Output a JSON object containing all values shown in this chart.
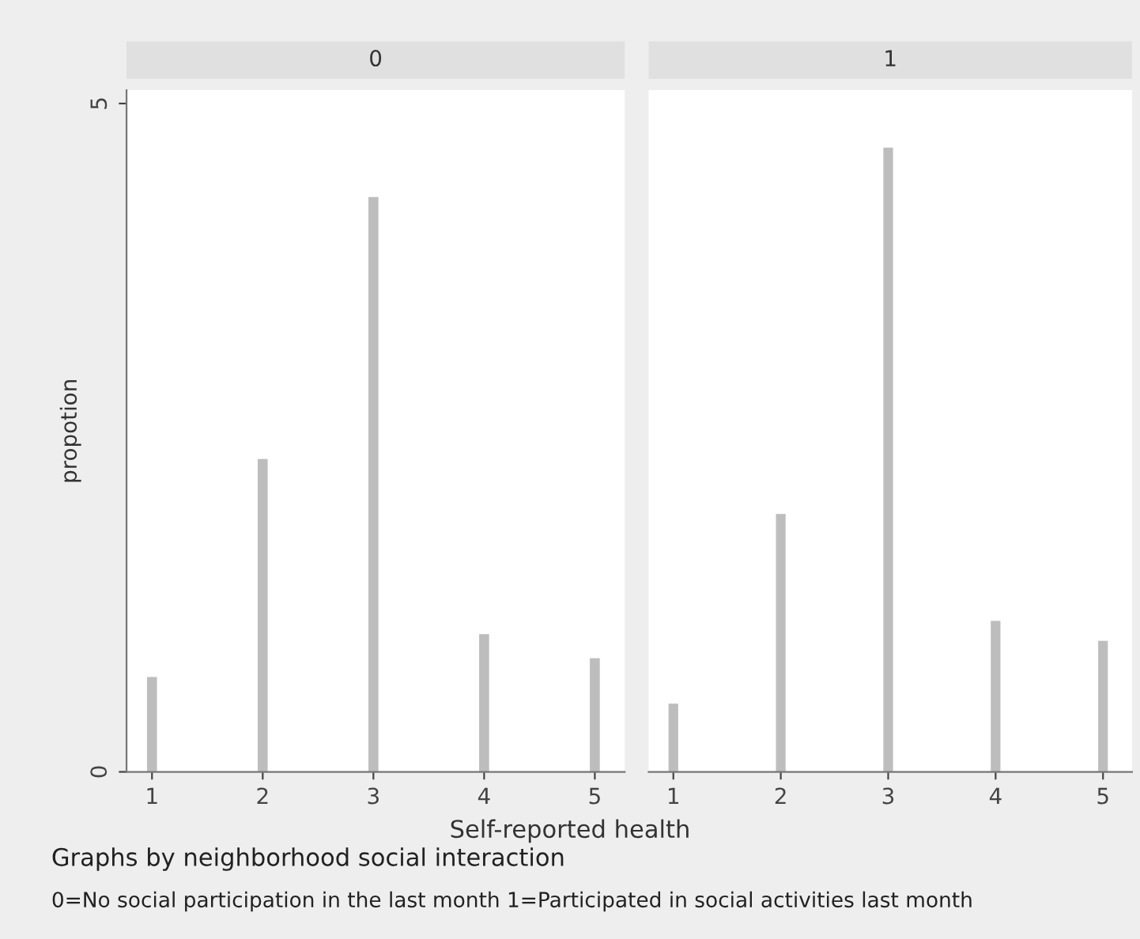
{
  "chart_data": [
    {
      "type": "bar",
      "title": "0",
      "ylabel": "propotion",
      "xlabel": "Self-reported health",
      "x": [
        1,
        2,
        3,
        4,
        5
      ],
      "values": [
        0.71,
        2.34,
        4.3,
        1.03,
        0.85
      ],
      "color": "#bdbdbd",
      "xlim": [
        0.77,
        5.27
      ],
      "xticks": [
        1,
        2,
        3,
        4,
        5
      ],
      "ylim": [
        0,
        5.1
      ],
      "yticks": [
        0,
        5
      ],
      "grid": false,
      "annotations": [
        "Graphs by neighborhood social interaction",
        "0=No social participation in the last month 1=Participated in social activities last month"
      ]
    },
    {
      "type": "bar",
      "title": "1",
      "x": [
        1,
        2,
        3,
        4,
        5
      ],
      "values": [
        0.51,
        1.93,
        4.67,
        1.13,
        0.98
      ],
      "color": "#bdbdbd",
      "xlim": [
        0.77,
        5.27
      ],
      "xticks": [
        1,
        2,
        3,
        4,
        5
      ],
      "ylim": [
        0,
        5.1
      ],
      "yticks": [
        0,
        5
      ],
      "grid": false,
      "tick_labels": "x"
    }
  ]
}
